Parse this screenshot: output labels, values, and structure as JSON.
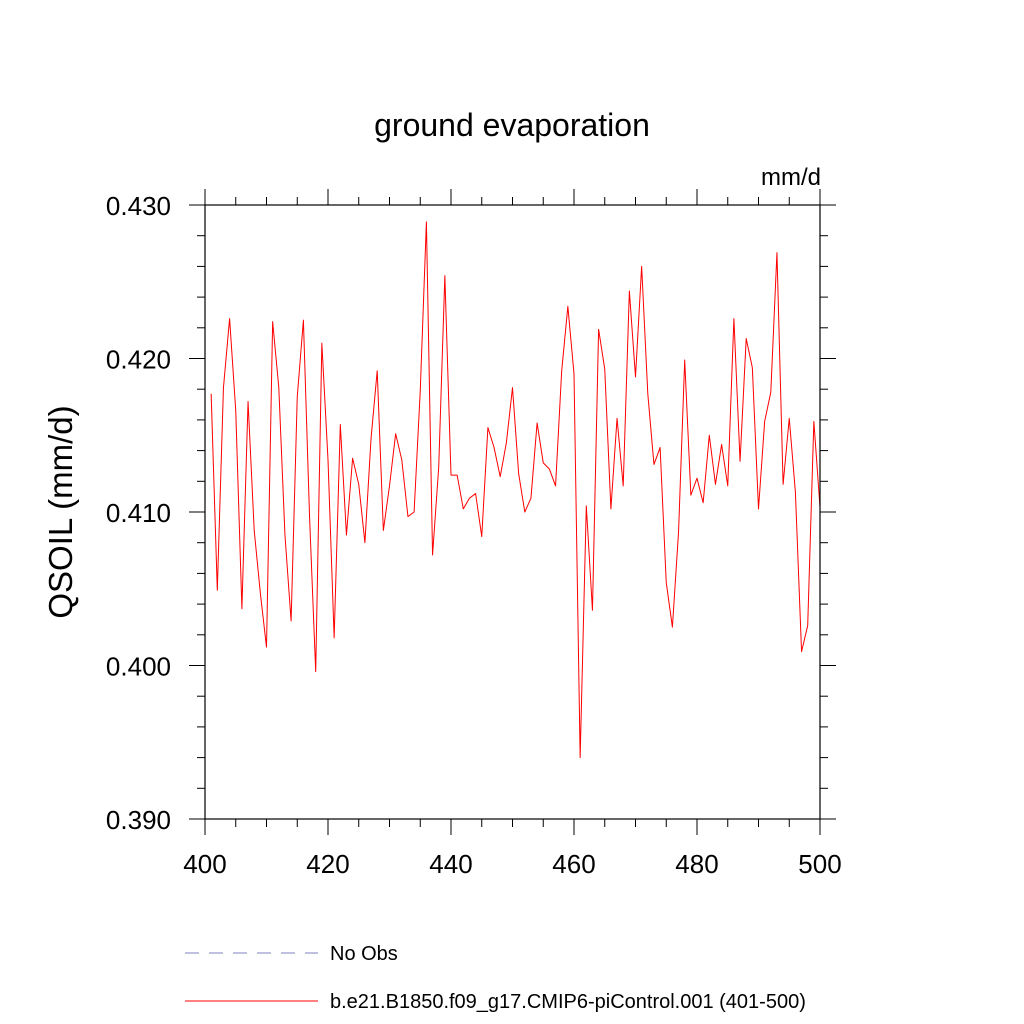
{
  "chart_data": {
    "type": "line",
    "title": "ground evaporation",
    "units": "mm/d",
    "xlabel": "",
    "ylabel": "QSOIL  (mm/d)",
    "xlim": [
      400,
      500
    ],
    "ylim": [
      0.39,
      0.43
    ],
    "xticks": [
      400,
      420,
      440,
      460,
      480,
      500
    ],
    "xtick_labels": [
      "400",
      "420",
      "440",
      "460",
      "480",
      "500"
    ],
    "yticks": [
      0.39,
      0.4,
      0.41,
      0.42,
      0.43
    ],
    "ytick_labels": [
      "0.390",
      "0.400",
      "0.410",
      "0.420",
      "0.430"
    ],
    "series": [
      {
        "name": "No Obs",
        "color": "#8080c0",
        "style": "dashed",
        "x": [],
        "values": []
      },
      {
        "name": "b.e21.B1850.f09_g17.CMIP6-piControl.001 (401-500)",
        "color": "#ff0000",
        "style": "solid",
        "x": [
          401,
          402,
          403,
          404,
          405,
          406,
          407,
          408,
          409,
          410,
          411,
          412,
          413,
          414,
          415,
          416,
          417,
          418,
          419,
          420,
          421,
          422,
          423,
          424,
          425,
          426,
          427,
          428,
          429,
          430,
          431,
          432,
          433,
          434,
          435,
          436,
          437,
          438,
          439,
          440,
          441,
          442,
          443,
          444,
          445,
          446,
          447,
          448,
          449,
          450,
          451,
          452,
          453,
          454,
          455,
          456,
          457,
          458,
          459,
          460,
          461,
          462,
          463,
          464,
          465,
          466,
          467,
          468,
          469,
          470,
          471,
          472,
          473,
          474,
          475,
          476,
          477,
          478,
          479,
          480,
          481,
          482,
          483,
          484,
          485,
          486,
          487,
          488,
          489,
          490,
          491,
          492,
          493,
          494,
          495,
          496,
          497,
          498,
          499,
          500
        ],
        "values": [
          0.4177,
          0.4049,
          0.4181,
          0.4226,
          0.4166,
          0.4037,
          0.4172,
          0.4088,
          0.4047,
          0.4012,
          0.4224,
          0.4181,
          0.4085,
          0.4029,
          0.4175,
          0.4225,
          0.4097,
          0.3996,
          0.421,
          0.4134,
          0.4018,
          0.4157,
          0.4085,
          0.4135,
          0.4118,
          0.408,
          0.4148,
          0.4192,
          0.4088,
          0.4117,
          0.4151,
          0.4134,
          0.4097,
          0.41,
          0.4179,
          0.4289,
          0.4072,
          0.4129,
          0.4254,
          0.4124,
          0.4124,
          0.4102,
          0.4109,
          0.4112,
          0.4084,
          0.4155,
          0.4142,
          0.4123,
          0.4145,
          0.4181,
          0.4125,
          0.41,
          0.4109,
          0.4158,
          0.4132,
          0.4128,
          0.4117,
          0.4192,
          0.4234,
          0.419,
          0.394,
          0.4104,
          0.4036,
          0.4219,
          0.4193,
          0.4102,
          0.4161,
          0.4117,
          0.4244,
          0.4188,
          0.426,
          0.4177,
          0.4131,
          0.4142,
          0.4054,
          0.4025,
          0.4087,
          0.4199,
          0.4111,
          0.4122,
          0.4106,
          0.415,
          0.4118,
          0.4144,
          0.4117,
          0.4226,
          0.4133,
          0.4213,
          0.4194,
          0.4102,
          0.4159,
          0.4178,
          0.4269,
          0.4118,
          0.4161,
          0.4113,
          0.4009,
          0.4026,
          0.4159,
          0.4103
        ]
      }
    ],
    "legend_position": "bottom"
  }
}
